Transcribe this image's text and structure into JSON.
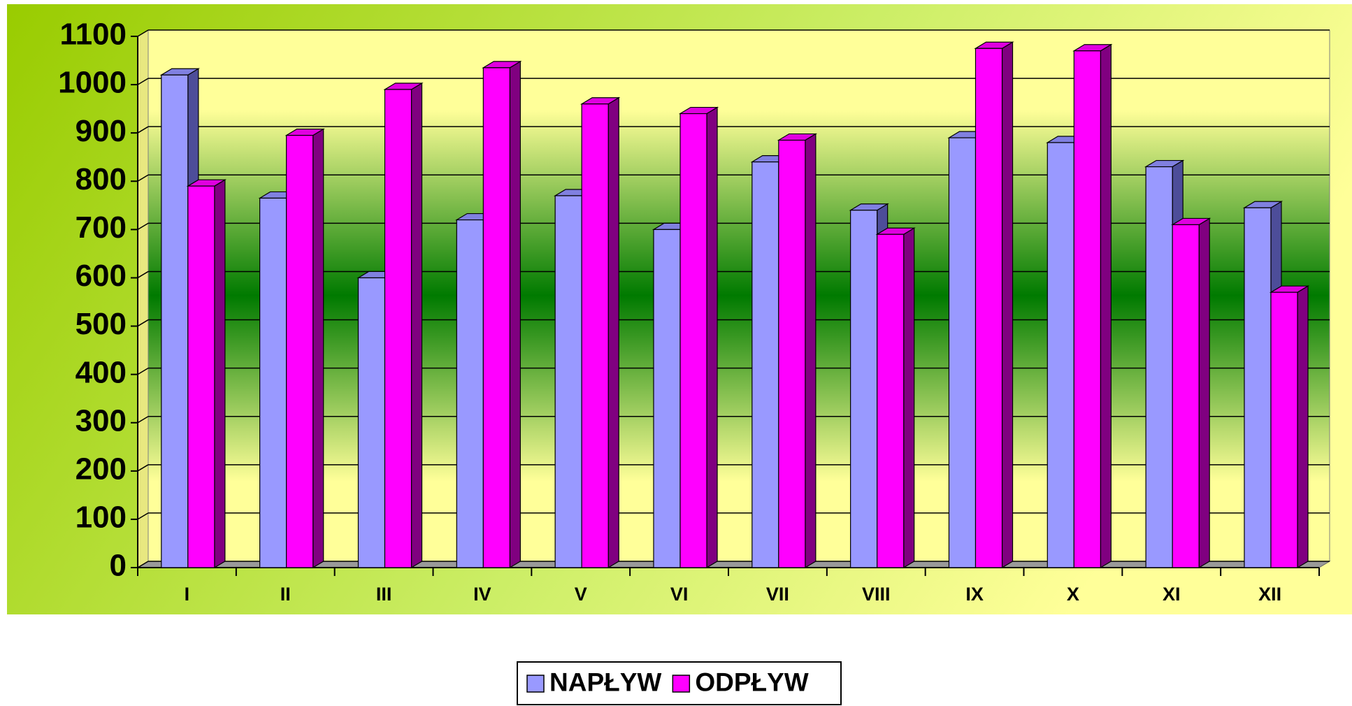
{
  "chart_data": {
    "type": "bar3d",
    "categories": [
      "I",
      "II",
      "III",
      "IV",
      "V",
      "VI",
      "VII",
      "VIII",
      "IX",
      "X",
      "XI",
      "XII"
    ],
    "series": [
      {
        "name": "NAPŁYW",
        "color": "#9999ff",
        "values": [
          1020,
          765,
          600,
          720,
          770,
          700,
          840,
          740,
          890,
          880,
          830,
          745
        ]
      },
      {
        "name": "ODPŁYW",
        "color": "#ff00ff",
        "values": [
          790,
          895,
          990,
          1035,
          960,
          940,
          885,
          690,
          1075,
          1070,
          710,
          570
        ]
      }
    ],
    "ylim": [
      0,
      1100
    ],
    "yticks": [
      0,
      100,
      200,
      300,
      400,
      500,
      600,
      700,
      800,
      900,
      1000,
      1100
    ],
    "grid": true,
    "legend": "bottom"
  }
}
